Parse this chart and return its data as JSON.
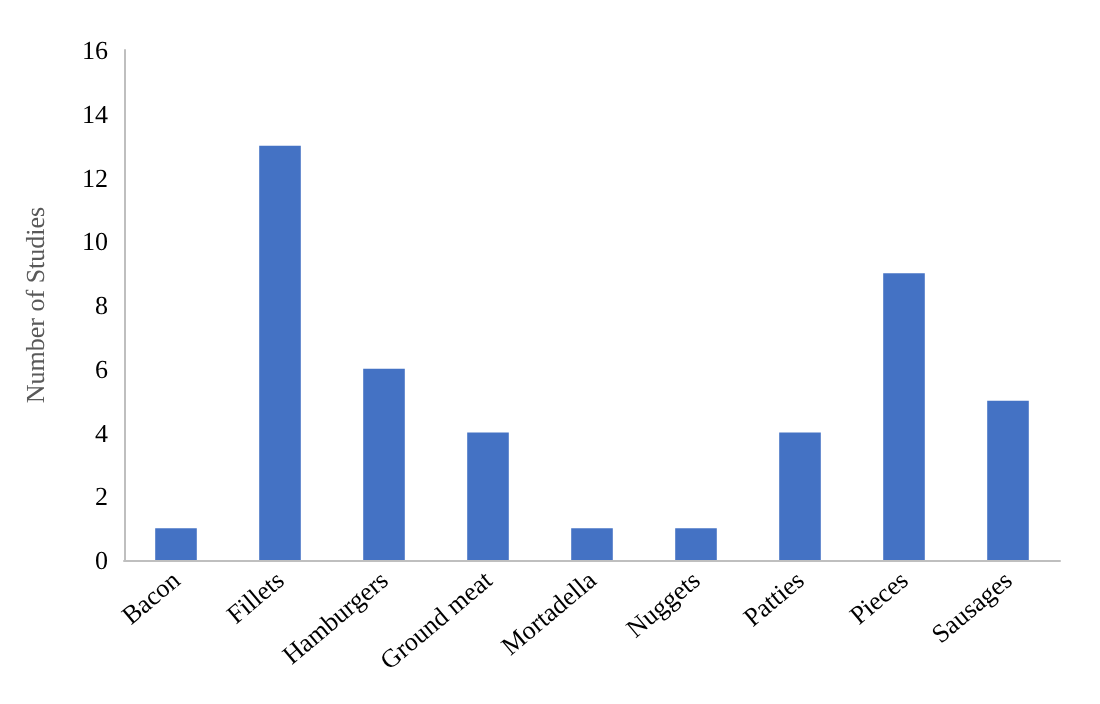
{
  "chart_data": {
    "type": "bar",
    "ylabel": "Number of Studies",
    "categories": [
      "Bacon",
      "Fillets",
      "Hamburgers",
      "Ground meat",
      "Mortadella",
      "Nuggets",
      "Patties",
      "Pieces",
      "Sausages"
    ],
    "values": [
      1,
      13,
      6,
      4,
      1,
      1,
      4,
      9,
      5
    ],
    "color": "#4472c4",
    "ylim": [
      0,
      16
    ],
    "yticks": [
      0,
      2,
      4,
      6,
      8,
      10,
      12,
      14,
      16
    ],
    "grid": false
  }
}
